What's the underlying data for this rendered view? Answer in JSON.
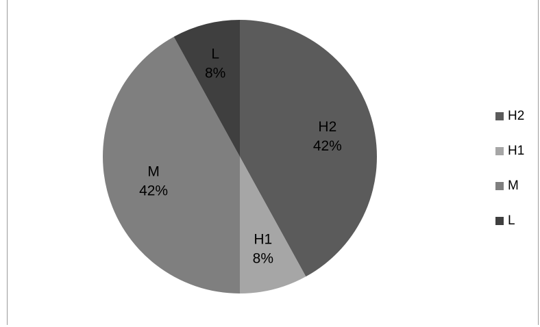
{
  "chart_data": {
    "type": "pie",
    "title": "",
    "start_angle_deg": 0,
    "direction": "clockwise",
    "legend_position": "right",
    "slices": [
      {
        "name": "H2",
        "value": 42,
        "label_pct": "42%",
        "color": "#5b5b5b"
      },
      {
        "name": "H1",
        "value": 8,
        "label_pct": "8%",
        "color": "#a6a6a6"
      },
      {
        "name": "M",
        "value": 42,
        "label_pct": "42%",
        "color": "#7f7f7f"
      },
      {
        "name": "L",
        "value": 8,
        "label_pct": "8%",
        "color": "#3f3f3f"
      }
    ]
  }
}
